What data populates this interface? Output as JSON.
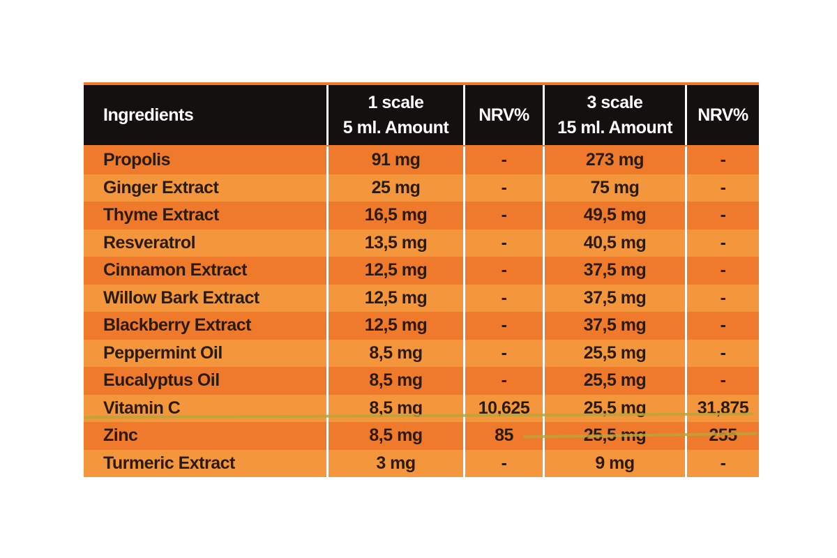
{
  "table": {
    "header": [
      [
        "Ingredients"
      ],
      [
        "1 scale",
        "5 ml. Amount"
      ],
      [
        "NRV%"
      ],
      [
        "3 scale",
        "15 ml. Amount"
      ],
      [
        "NRV%"
      ]
    ],
    "rows": [
      [
        "Propolis",
        "91 mg",
        "-",
        "273 mg",
        "-"
      ],
      [
        "Ginger Extract",
        "25 mg",
        "-",
        "75 mg",
        "-"
      ],
      [
        "Thyme Extract",
        "16,5 mg",
        "-",
        "49,5 mg",
        "-"
      ],
      [
        "Resveratrol",
        "13,5 mg",
        "-",
        "40,5 mg",
        "-"
      ],
      [
        "Cinnamon Extract",
        "12,5 mg",
        "-",
        "37,5 mg",
        "-"
      ],
      [
        "Willow Bark Extract",
        "12,5 mg",
        "-",
        "37,5 mg",
        "-"
      ],
      [
        "Blackberry Extract",
        "12,5 mg",
        "-",
        "37,5 mg",
        "-"
      ],
      [
        "Peppermint Oil",
        "8,5 mg",
        "-",
        "25,5 mg",
        "-"
      ],
      [
        "Eucalyptus Oil",
        "8,5 mg",
        "-",
        "25,5 mg",
        "-"
      ],
      [
        "Vitamin C",
        "8,5 mg",
        "10,625",
        "25,5 mg",
        "31,875"
      ],
      [
        "Zinc",
        "8,5 mg",
        "85",
        "25,5 mg",
        "255"
      ],
      [
        "Turmeric Extract",
        "3 mg",
        "-",
        "9 mg",
        "-"
      ]
    ]
  }
}
